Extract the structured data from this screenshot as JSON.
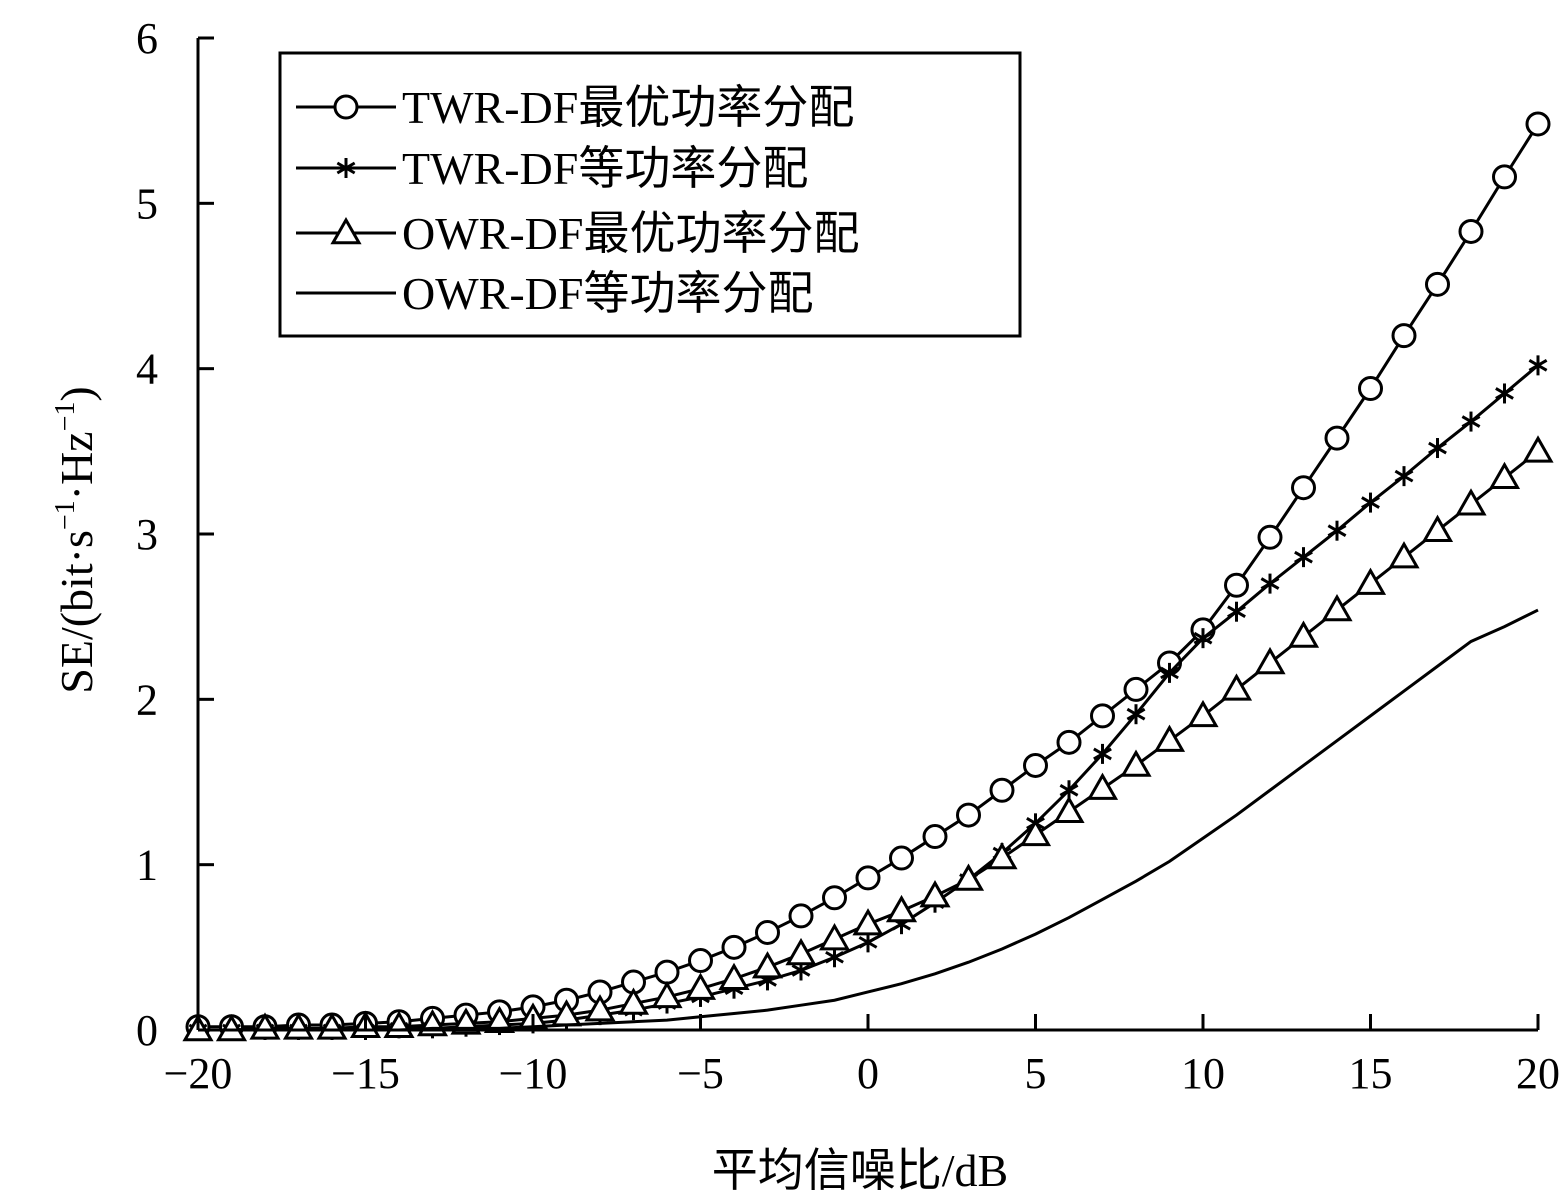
{
  "chart_data": {
    "type": "line",
    "title": "",
    "xlabel": "平均信噪比/dB",
    "ylabel_parts": [
      "SE/(bit·s",
      "−1",
      "·Hz",
      "−1",
      ")"
    ],
    "xlim": [
      -20,
      20
    ],
    "ylim": [
      0,
      6
    ],
    "xticks": [
      -20,
      -15,
      -10,
      -5,
      0,
      5,
      10,
      15,
      20
    ],
    "xtick_labels": [
      "−20",
      "−15",
      "−10",
      "−5",
      "0",
      "5",
      "10",
      "15",
      "20"
    ],
    "yticks": [
      0,
      1,
      2,
      3,
      4,
      5,
      6
    ],
    "ytick_labels": [
      "0",
      "1",
      "2",
      "3",
      "4",
      "5",
      "6"
    ],
    "grid": false,
    "legend_position": "top-left",
    "x": [
      -20,
      -19,
      -18,
      -17,
      -16,
      -15,
      -14,
      -13,
      -12,
      -11,
      -10,
      -9,
      -8,
      -7,
      -6,
      -5,
      -4,
      -3,
      -2,
      -1,
      0,
      1,
      2,
      3,
      4,
      5,
      6,
      7,
      8,
      9,
      10,
      11,
      12,
      13,
      14,
      15,
      16,
      17,
      18,
      19,
      20
    ],
    "series": [
      {
        "name": "TWR-DF最优功率分配",
        "marker": "circle",
        "values": [
          0.02,
          0.02,
          0.02,
          0.03,
          0.03,
          0.04,
          0.05,
          0.07,
          0.09,
          0.11,
          0.14,
          0.18,
          0.23,
          0.29,
          0.35,
          0.42,
          0.5,
          0.59,
          0.69,
          0.8,
          0.92,
          1.04,
          1.17,
          1.3,
          1.45,
          1.6,
          1.74,
          1.9,
          2.06,
          2.22,
          2.42,
          2.69,
          2.98,
          3.28,
          3.58,
          3.88,
          4.2,
          4.51,
          4.83,
          5.16,
          5.48
        ]
      },
      {
        "name": "TWR-DF等功率分配",
        "marker": "star",
        "values": [
          0.0,
          0.0,
          0.0,
          0.0,
          0.0,
          0.0,
          0.01,
          0.01,
          0.02,
          0.03,
          0.04,
          0.06,
          0.09,
          0.12,
          0.16,
          0.2,
          0.25,
          0.3,
          0.36,
          0.44,
          0.53,
          0.64,
          0.77,
          0.91,
          1.07,
          1.25,
          1.45,
          1.67,
          1.91,
          2.16,
          2.37,
          2.53,
          2.7,
          2.86,
          3.02,
          3.19,
          3.35,
          3.52,
          3.68,
          3.85,
          4.02
        ]
      },
      {
        "name": "OWR-DF最优功率分配",
        "marker": "triangle",
        "values": [
          0.0,
          0.0,
          0.01,
          0.01,
          0.01,
          0.02,
          0.02,
          0.03,
          0.04,
          0.05,
          0.07,
          0.09,
          0.12,
          0.16,
          0.2,
          0.25,
          0.31,
          0.38,
          0.46,
          0.55,
          0.64,
          0.72,
          0.81,
          0.91,
          1.04,
          1.18,
          1.32,
          1.46,
          1.6,
          1.75,
          1.9,
          2.06,
          2.22,
          2.38,
          2.54,
          2.7,
          2.86,
          3.02,
          3.18,
          3.34,
          3.5
        ]
      },
      {
        "name": "OWR-DF等功率分配",
        "marker": "none",
        "values": [
          0.0,
          0.0,
          0.0,
          0.0,
          0.0,
          0.0,
          0.0,
          0.01,
          0.01,
          0.01,
          0.02,
          0.03,
          0.04,
          0.05,
          0.06,
          0.08,
          0.1,
          0.12,
          0.15,
          0.18,
          0.23,
          0.28,
          0.34,
          0.41,
          0.49,
          0.58,
          0.68,
          0.79,
          0.9,
          1.02,
          1.16,
          1.3,
          1.45,
          1.6,
          1.75,
          1.9,
          2.05,
          2.2,
          2.35,
          2.44,
          2.54
        ]
      }
    ]
  }
}
